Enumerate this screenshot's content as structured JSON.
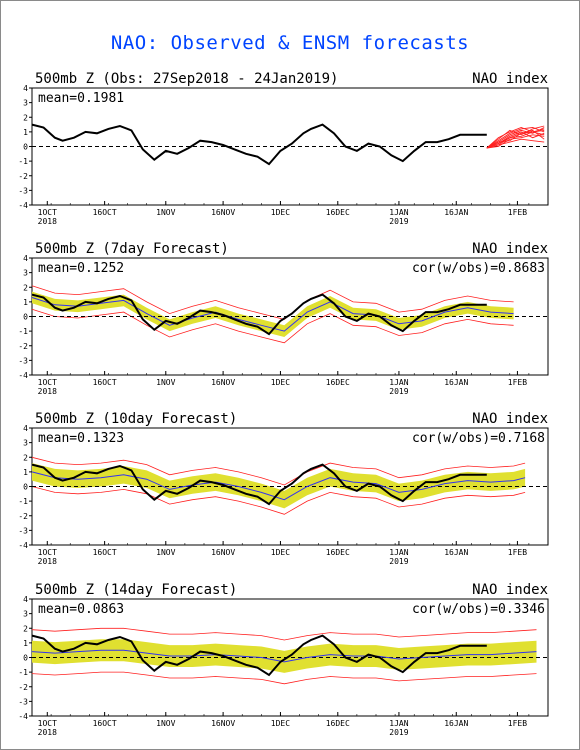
{
  "title": "NAO: Observed & ENSM forecasts",
  "colors": {
    "title": "#0044ff",
    "observed": "#000000",
    "forecast_members": "#ff2020",
    "spread": "#e0e030",
    "ens_mean": "#3333ee",
    "zero_line": "#000000"
  },
  "x_axis": {
    "start": "2018-09-27",
    "end": "2019-02-09",
    "ticks": [
      {
        "date": "2018-10-01",
        "label": "1OCT",
        "sublabel": "2018"
      },
      {
        "date": "2018-10-16",
        "label": "16OCT",
        "sublabel": ""
      },
      {
        "date": "2018-11-01",
        "label": "1NOV",
        "sublabel": ""
      },
      {
        "date": "2018-11-16",
        "label": "16NOV",
        "sublabel": ""
      },
      {
        "date": "2018-12-01",
        "label": "1DEC",
        "sublabel": ""
      },
      {
        "date": "2018-12-16",
        "label": "16DEC",
        "sublabel": ""
      },
      {
        "date": "2019-01-01",
        "label": "1JAN",
        "sublabel": "2019"
      },
      {
        "date": "2019-01-16",
        "label": "16JAN",
        "sublabel": ""
      },
      {
        "date": "2019-02-01",
        "label": "1FEB",
        "sublabel": ""
      }
    ]
  },
  "chart_data": [
    {
      "type": "line",
      "title": "500mb Z (Obs: 27Sep2018 - 24Jan2019)",
      "right_label": "NAO index",
      "stat_label": "mean=0.1981",
      "cor_label": "",
      "ylim": [
        -4,
        4
      ],
      "yticks": [
        -4,
        -3,
        -2,
        -1,
        0,
        1,
        2,
        3,
        4
      ],
      "observed": {
        "x": [
          "2018-09-27",
          "2018-09-30",
          "2018-10-03",
          "2018-10-05",
          "2018-10-08",
          "2018-10-11",
          "2018-10-14",
          "2018-10-17",
          "2018-10-20",
          "2018-10-23",
          "2018-10-26",
          "2018-10-29",
          "2018-11-01",
          "2018-11-04",
          "2018-11-07",
          "2018-11-10",
          "2018-11-13",
          "2018-11-16",
          "2018-11-19",
          "2018-11-22",
          "2018-11-25",
          "2018-11-28",
          "2018-12-01",
          "2018-12-04",
          "2018-12-07",
          "2018-12-09",
          "2018-12-12",
          "2018-12-15",
          "2018-12-18",
          "2018-12-21",
          "2018-12-24",
          "2018-12-27",
          "2018-12-30",
          "2019-01-02",
          "2019-01-05",
          "2019-01-08",
          "2019-01-11",
          "2019-01-14",
          "2019-01-17",
          "2019-01-20",
          "2019-01-24"
        ],
        "y": [
          1.5,
          1.3,
          0.6,
          0.4,
          0.6,
          1.0,
          0.9,
          1.2,
          1.4,
          1.1,
          -0.2,
          -0.9,
          -0.3,
          -0.5,
          -0.1,
          0.4,
          0.3,
          0.1,
          -0.2,
          -0.5,
          -0.7,
          -1.2,
          -0.3,
          0.2,
          0.9,
          1.2,
          1.5,
          0.9,
          0.0,
          -0.3,
          0.2,
          0.0,
          -0.6,
          -1.0,
          -0.3,
          0.3,
          0.3,
          0.5,
          0.8,
          0.8,
          0.8
        ]
      },
      "members": {
        "x": [
          "2019-01-24",
          "2019-01-27",
          "2019-01-30",
          "2019-02-02",
          "2019-02-05",
          "2019-02-08"
        ],
        "series": [
          [
            -0.1,
            0.2,
            0.6,
            0.9,
            1.0,
            1.1
          ],
          [
            -0.1,
            0.4,
            0.9,
            1.2,
            1.3,
            1.0
          ],
          [
            -0.1,
            0.0,
            0.5,
            0.6,
            0.8,
            0.7
          ],
          [
            -0.1,
            0.3,
            0.8,
            1.1,
            0.9,
            1.3
          ],
          [
            -0.1,
            0.1,
            0.3,
            0.5,
            0.4,
            0.3
          ],
          [
            -0.1,
            0.5,
            1.1,
            0.8,
            1.2,
            1.4
          ],
          [
            -0.1,
            0.2,
            0.7,
            1.0,
            0.6,
            0.9
          ],
          [
            -0.1,
            0.3,
            0.4,
            0.9,
            1.1,
            0.5
          ],
          [
            -0.1,
            0.6,
            1.0,
            1.3,
            1.0,
            1.2
          ],
          [
            -0.1,
            0.1,
            0.6,
            0.7,
            1.0,
            0.8
          ]
        ]
      }
    },
    {
      "type": "line",
      "title": "500mb Z (7day Forecast)",
      "right_label": "NAO index",
      "stat_label": "mean=0.1252",
      "cor_label": "cor(w/obs)=0.8683",
      "ylim": [
        -4,
        4
      ],
      "yticks": [
        -4,
        -3,
        -2,
        -1,
        0,
        1,
        2,
        3,
        4
      ],
      "observed": {
        "x": [
          "2018-09-27",
          "2018-09-30",
          "2018-10-03",
          "2018-10-05",
          "2018-10-08",
          "2018-10-11",
          "2018-10-14",
          "2018-10-17",
          "2018-10-20",
          "2018-10-23",
          "2018-10-26",
          "2018-10-29",
          "2018-11-01",
          "2018-11-04",
          "2018-11-07",
          "2018-11-10",
          "2018-11-13",
          "2018-11-16",
          "2018-11-19",
          "2018-11-22",
          "2018-11-25",
          "2018-11-28",
          "2018-12-01",
          "2018-12-04",
          "2018-12-07",
          "2018-12-09",
          "2018-12-12",
          "2018-12-15",
          "2018-12-18",
          "2018-12-21",
          "2018-12-24",
          "2018-12-27",
          "2018-12-30",
          "2019-01-02",
          "2019-01-05",
          "2019-01-08",
          "2019-01-11",
          "2019-01-14",
          "2019-01-17",
          "2019-01-20",
          "2019-01-24"
        ],
        "y": [
          1.5,
          1.3,
          0.6,
          0.4,
          0.6,
          1.0,
          0.9,
          1.2,
          1.4,
          1.1,
          -0.2,
          -0.9,
          -0.3,
          -0.5,
          -0.1,
          0.4,
          0.3,
          0.1,
          -0.2,
          -0.5,
          -0.7,
          -1.2,
          -0.3,
          0.2,
          0.9,
          1.2,
          1.5,
          0.9,
          0.0,
          -0.3,
          0.2,
          0.0,
          -0.6,
          -1.0,
          -0.3,
          0.3,
          0.3,
          0.5,
          0.8,
          0.8,
          0.8
        ]
      },
      "ens_mean": {
        "x": [
          "2018-09-27",
          "2018-10-03",
          "2018-10-09",
          "2018-10-15",
          "2018-10-21",
          "2018-10-27",
          "2018-11-02",
          "2018-11-08",
          "2018-11-14",
          "2018-11-20",
          "2018-11-26",
          "2018-12-02",
          "2018-12-08",
          "2018-12-14",
          "2018-12-20",
          "2018-12-26",
          "2019-01-01",
          "2019-01-07",
          "2019-01-13",
          "2019-01-19",
          "2019-01-25",
          "2019-01-31"
        ],
        "y": [
          1.3,
          0.8,
          0.7,
          0.9,
          1.1,
          0.2,
          -0.6,
          -0.1,
          0.3,
          -0.2,
          -0.6,
          -1.0,
          0.3,
          1.0,
          0.2,
          0.1,
          -0.5,
          -0.3,
          0.3,
          0.6,
          0.3,
          0.2
        ]
      },
      "spread": {
        "x": [
          "2018-09-27",
          "2018-10-03",
          "2018-10-09",
          "2018-10-15",
          "2018-10-21",
          "2018-10-27",
          "2018-11-02",
          "2018-11-08",
          "2018-11-14",
          "2018-11-20",
          "2018-11-26",
          "2018-12-02",
          "2018-12-08",
          "2018-12-14",
          "2018-12-20",
          "2018-12-26",
          "2019-01-01",
          "2019-01-07",
          "2019-01-13",
          "2019-01-19",
          "2019-01-25",
          "2019-01-31"
        ],
        "half_width": 0.4
      },
      "range": {
        "x": [
          "2018-09-27",
          "2018-10-03",
          "2018-10-09",
          "2018-10-15",
          "2018-10-21",
          "2018-10-27",
          "2018-11-02",
          "2018-11-08",
          "2018-11-14",
          "2018-11-20",
          "2018-11-26",
          "2018-12-02",
          "2018-12-08",
          "2018-12-14",
          "2018-12-20",
          "2018-12-26",
          "2019-01-01",
          "2019-01-07",
          "2019-01-13",
          "2019-01-19",
          "2019-01-25",
          "2019-01-31"
        ],
        "half_width": 0.8
      }
    },
    {
      "type": "line",
      "title": "500mb Z (10day Forecast)",
      "right_label": "NAO index",
      "stat_label": "mean=0.1323",
      "cor_label": "cor(w/obs)=0.7168",
      "ylim": [
        -4,
        4
      ],
      "yticks": [
        -4,
        -3,
        -2,
        -1,
        0,
        1,
        2,
        3,
        4
      ],
      "observed": {
        "x": [
          "2018-09-27",
          "2018-09-30",
          "2018-10-03",
          "2018-10-05",
          "2018-10-08",
          "2018-10-11",
          "2018-10-14",
          "2018-10-17",
          "2018-10-20",
          "2018-10-23",
          "2018-10-26",
          "2018-10-29",
          "2018-11-01",
          "2018-11-04",
          "2018-11-07",
          "2018-11-10",
          "2018-11-13",
          "2018-11-16",
          "2018-11-19",
          "2018-11-22",
          "2018-11-25",
          "2018-11-28",
          "2018-12-01",
          "2018-12-04",
          "2018-12-07",
          "2018-12-09",
          "2018-12-12",
          "2018-12-15",
          "2018-12-18",
          "2018-12-21",
          "2018-12-24",
          "2018-12-27",
          "2018-12-30",
          "2019-01-02",
          "2019-01-05",
          "2019-01-08",
          "2019-01-11",
          "2019-01-14",
          "2019-01-17",
          "2019-01-20",
          "2019-01-24"
        ],
        "y": [
          1.5,
          1.3,
          0.6,
          0.4,
          0.6,
          1.0,
          0.9,
          1.2,
          1.4,
          1.1,
          -0.2,
          -0.9,
          -0.3,
          -0.5,
          -0.1,
          0.4,
          0.3,
          0.1,
          -0.2,
          -0.5,
          -0.7,
          -1.2,
          -0.3,
          0.2,
          0.9,
          1.2,
          1.5,
          0.9,
          0.0,
          -0.3,
          0.2,
          0.0,
          -0.6,
          -1.0,
          -0.3,
          0.3,
          0.3,
          0.5,
          0.8,
          0.8,
          0.8
        ]
      },
      "ens_mean": {
        "x": [
          "2018-09-27",
          "2018-10-03",
          "2018-10-09",
          "2018-10-15",
          "2018-10-21",
          "2018-10-27",
          "2018-11-02",
          "2018-11-08",
          "2018-11-14",
          "2018-11-20",
          "2018-11-26",
          "2018-12-02",
          "2018-12-08",
          "2018-12-14",
          "2018-12-20",
          "2018-12-26",
          "2019-01-01",
          "2019-01-07",
          "2019-01-13",
          "2019-01-19",
          "2019-01-25",
          "2019-01-31",
          "2019-02-03"
        ],
        "y": [
          1.0,
          0.6,
          0.5,
          0.6,
          0.8,
          0.5,
          -0.2,
          0.1,
          0.3,
          0.0,
          -0.4,
          -0.9,
          0.0,
          0.6,
          0.3,
          0.2,
          -0.4,
          -0.2,
          0.2,
          0.4,
          0.3,
          0.4,
          0.6
        ]
      },
      "spread": {
        "x": [
          "2018-09-27",
          "2018-10-03",
          "2018-10-09",
          "2018-10-15",
          "2018-10-21",
          "2018-10-27",
          "2018-11-02",
          "2018-11-08",
          "2018-11-14",
          "2018-11-20",
          "2018-11-26",
          "2018-12-02",
          "2018-12-08",
          "2018-12-14",
          "2018-12-20",
          "2018-12-26",
          "2019-01-01",
          "2019-01-07",
          "2019-01-13",
          "2019-01-19",
          "2019-01-25",
          "2019-01-31",
          "2019-02-03"
        ],
        "half_width": 0.6
      },
      "range": {
        "x": [
          "2018-09-27",
          "2018-10-03",
          "2018-10-09",
          "2018-10-15",
          "2018-10-21",
          "2018-10-27",
          "2018-11-02",
          "2018-11-08",
          "2018-11-14",
          "2018-11-20",
          "2018-11-26",
          "2018-12-02",
          "2018-12-08",
          "2018-12-14",
          "2018-12-20",
          "2018-12-26",
          "2019-01-01",
          "2019-01-07",
          "2019-01-13",
          "2019-01-19",
          "2019-01-25",
          "2019-01-31",
          "2019-02-03"
        ],
        "half_width": 1.0
      }
    },
    {
      "type": "line",
      "title": "500mb Z (14day Forecast)",
      "right_label": "NAO index",
      "stat_label": "mean=0.0863",
      "cor_label": "cor(w/obs)=0.3346",
      "ylim": [
        -4,
        4
      ],
      "yticks": [
        -4,
        -3,
        -2,
        -1,
        0,
        1,
        2,
        3,
        4
      ],
      "observed": {
        "x": [
          "2018-09-27",
          "2018-09-30",
          "2018-10-03",
          "2018-10-05",
          "2018-10-08",
          "2018-10-11",
          "2018-10-14",
          "2018-10-17",
          "2018-10-20",
          "2018-10-23",
          "2018-10-26",
          "2018-10-29",
          "2018-11-01",
          "2018-11-04",
          "2018-11-07",
          "2018-11-10",
          "2018-11-13",
          "2018-11-16",
          "2018-11-19",
          "2018-11-22",
          "2018-11-25",
          "2018-11-28",
          "2018-12-01",
          "2018-12-04",
          "2018-12-07",
          "2018-12-09",
          "2018-12-12",
          "2018-12-15",
          "2018-12-18",
          "2018-12-21",
          "2018-12-24",
          "2018-12-27",
          "2018-12-30",
          "2019-01-02",
          "2019-01-05",
          "2019-01-08",
          "2019-01-11",
          "2019-01-14",
          "2019-01-17",
          "2019-01-20",
          "2019-01-24"
        ],
        "y": [
          1.5,
          1.3,
          0.6,
          0.4,
          0.6,
          1.0,
          0.9,
          1.2,
          1.4,
          1.1,
          -0.2,
          -0.9,
          -0.3,
          -0.5,
          -0.1,
          0.4,
          0.3,
          0.1,
          -0.2,
          -0.5,
          -0.7,
          -1.2,
          -0.3,
          0.2,
          0.9,
          1.2,
          1.5,
          0.9,
          0.0,
          -0.3,
          0.2,
          0.0,
          -0.6,
          -1.0,
          -0.3,
          0.3,
          0.3,
          0.5,
          0.8,
          0.8,
          0.8
        ]
      },
      "ens_mean": {
        "x": [
          "2018-09-27",
          "2018-10-03",
          "2018-10-09",
          "2018-10-15",
          "2018-10-21",
          "2018-10-27",
          "2018-11-02",
          "2018-11-08",
          "2018-11-14",
          "2018-11-20",
          "2018-11-26",
          "2018-12-02",
          "2018-12-08",
          "2018-12-14",
          "2018-12-20",
          "2018-12-26",
          "2019-01-01",
          "2019-01-07",
          "2019-01-13",
          "2019-01-19",
          "2019-01-25",
          "2019-01-31",
          "2019-02-06"
        ],
        "y": [
          0.4,
          0.3,
          0.4,
          0.5,
          0.5,
          0.3,
          0.1,
          0.1,
          0.2,
          0.1,
          0.0,
          -0.3,
          0.0,
          0.2,
          0.1,
          0.1,
          -0.1,
          0.0,
          0.1,
          0.2,
          0.2,
          0.3,
          0.4
        ]
      },
      "spread": {
        "x": [
          "2018-09-27",
          "2018-10-03",
          "2018-10-09",
          "2018-10-15",
          "2018-10-21",
          "2018-10-27",
          "2018-11-02",
          "2018-11-08",
          "2018-11-14",
          "2018-11-20",
          "2018-11-26",
          "2018-12-02",
          "2018-12-08",
          "2018-12-14",
          "2018-12-20",
          "2018-12-26",
          "2019-01-01",
          "2019-01-07",
          "2019-01-13",
          "2019-01-19",
          "2019-01-25",
          "2019-01-31",
          "2019-02-06"
        ],
        "half_width": 0.75
      },
      "range": {
        "x": [
          "2018-09-27",
          "2018-10-03",
          "2018-10-09",
          "2018-10-15",
          "2018-10-21",
          "2018-10-27",
          "2018-11-02",
          "2018-11-08",
          "2018-11-14",
          "2018-11-20",
          "2018-11-26",
          "2018-12-02",
          "2018-12-08",
          "2018-12-14",
          "2018-12-20",
          "2018-12-26",
          "2019-01-01",
          "2019-01-07",
          "2019-01-13",
          "2019-01-19",
          "2019-01-25",
          "2019-01-31",
          "2019-02-06"
        ],
        "half_width": 1.5
      }
    }
  ]
}
